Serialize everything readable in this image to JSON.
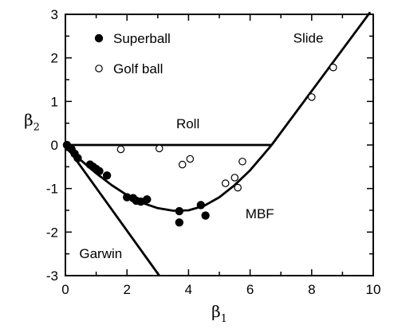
{
  "chart_data": {
    "type": "scatter",
    "xlabel": "β",
    "xlabel_sub": "1",
    "ylabel": "β",
    "ylabel_sub": "2",
    "xlim": [
      0,
      10
    ],
    "ylim": [
      -3,
      3
    ],
    "xticks": [
      "0",
      "2",
      "4",
      "6",
      "8",
      "10"
    ],
    "yticks": [
      "-3",
      "-2",
      "-1",
      "0",
      "1",
      "2",
      "3"
    ],
    "legend": {
      "position": "top-left"
    },
    "series": [
      {
        "name": "Superball",
        "marker": "filled-circle",
        "points": [
          [
            0.05,
            0.0
          ],
          [
            0.1,
            -0.05
          ],
          [
            0.2,
            -0.1
          ],
          [
            0.3,
            -0.2
          ],
          [
            0.4,
            -0.3
          ],
          [
            0.8,
            -0.45
          ],
          [
            0.9,
            -0.5
          ],
          [
            1.0,
            -0.55
          ],
          [
            1.1,
            -0.6
          ],
          [
            1.35,
            -0.7
          ],
          [
            2.0,
            -1.2
          ],
          [
            2.2,
            -1.22
          ],
          [
            2.3,
            -1.28
          ],
          [
            2.45,
            -1.3
          ],
          [
            2.65,
            -1.25
          ],
          [
            3.7,
            -1.52
          ],
          [
            3.7,
            -1.78
          ],
          [
            4.4,
            -1.38
          ],
          [
            4.55,
            -1.62
          ]
        ]
      },
      {
        "name": "Golf ball",
        "marker": "open-circle",
        "points": [
          [
            1.8,
            -0.1
          ],
          [
            3.05,
            -0.08
          ],
          [
            3.8,
            -0.45
          ],
          [
            4.05,
            -0.32
          ],
          [
            5.2,
            -0.88
          ],
          [
            5.5,
            -0.75
          ],
          [
            5.6,
            -0.98
          ],
          [
            5.75,
            -0.38
          ],
          [
            8.0,
            1.1
          ],
          [
            8.7,
            1.78
          ]
        ]
      }
    ],
    "curves": [
      {
        "label": "Roll",
        "points": [
          [
            0,
            0
          ],
          [
            6.7,
            0
          ]
        ]
      },
      {
        "label": "Slide",
        "points": [
          [
            6.7,
            0
          ],
          [
            9.9,
            3.05
          ]
        ]
      },
      {
        "label": "Garwin",
        "points": [
          [
            0,
            0
          ],
          [
            3.05,
            -3.0
          ]
        ]
      },
      {
        "label": "MBF",
        "points": [
          [
            0,
            0
          ],
          [
            0.5,
            -0.35
          ],
          [
            1.0,
            -0.65
          ],
          [
            1.5,
            -0.92
          ],
          [
            2.0,
            -1.15
          ],
          [
            2.5,
            -1.33
          ],
          [
            3.0,
            -1.45
          ],
          [
            3.5,
            -1.51
          ],
          [
            4.0,
            -1.5
          ],
          [
            4.5,
            -1.4
          ],
          [
            5.0,
            -1.2
          ],
          [
            5.5,
            -0.92
          ],
          [
            6.0,
            -0.58
          ],
          [
            6.4,
            -0.25
          ],
          [
            6.7,
            0
          ]
        ]
      }
    ],
    "annotations": [
      {
        "text": "Roll",
        "x": 3.6,
        "y": 0.38
      },
      {
        "text": "Slide",
        "x": 7.4,
        "y": 2.35
      },
      {
        "text": "MBF",
        "x": 5.85,
        "y": -1.68
      },
      {
        "text": "Garwin",
        "x": 0.45,
        "y": -2.6
      }
    ]
  }
}
